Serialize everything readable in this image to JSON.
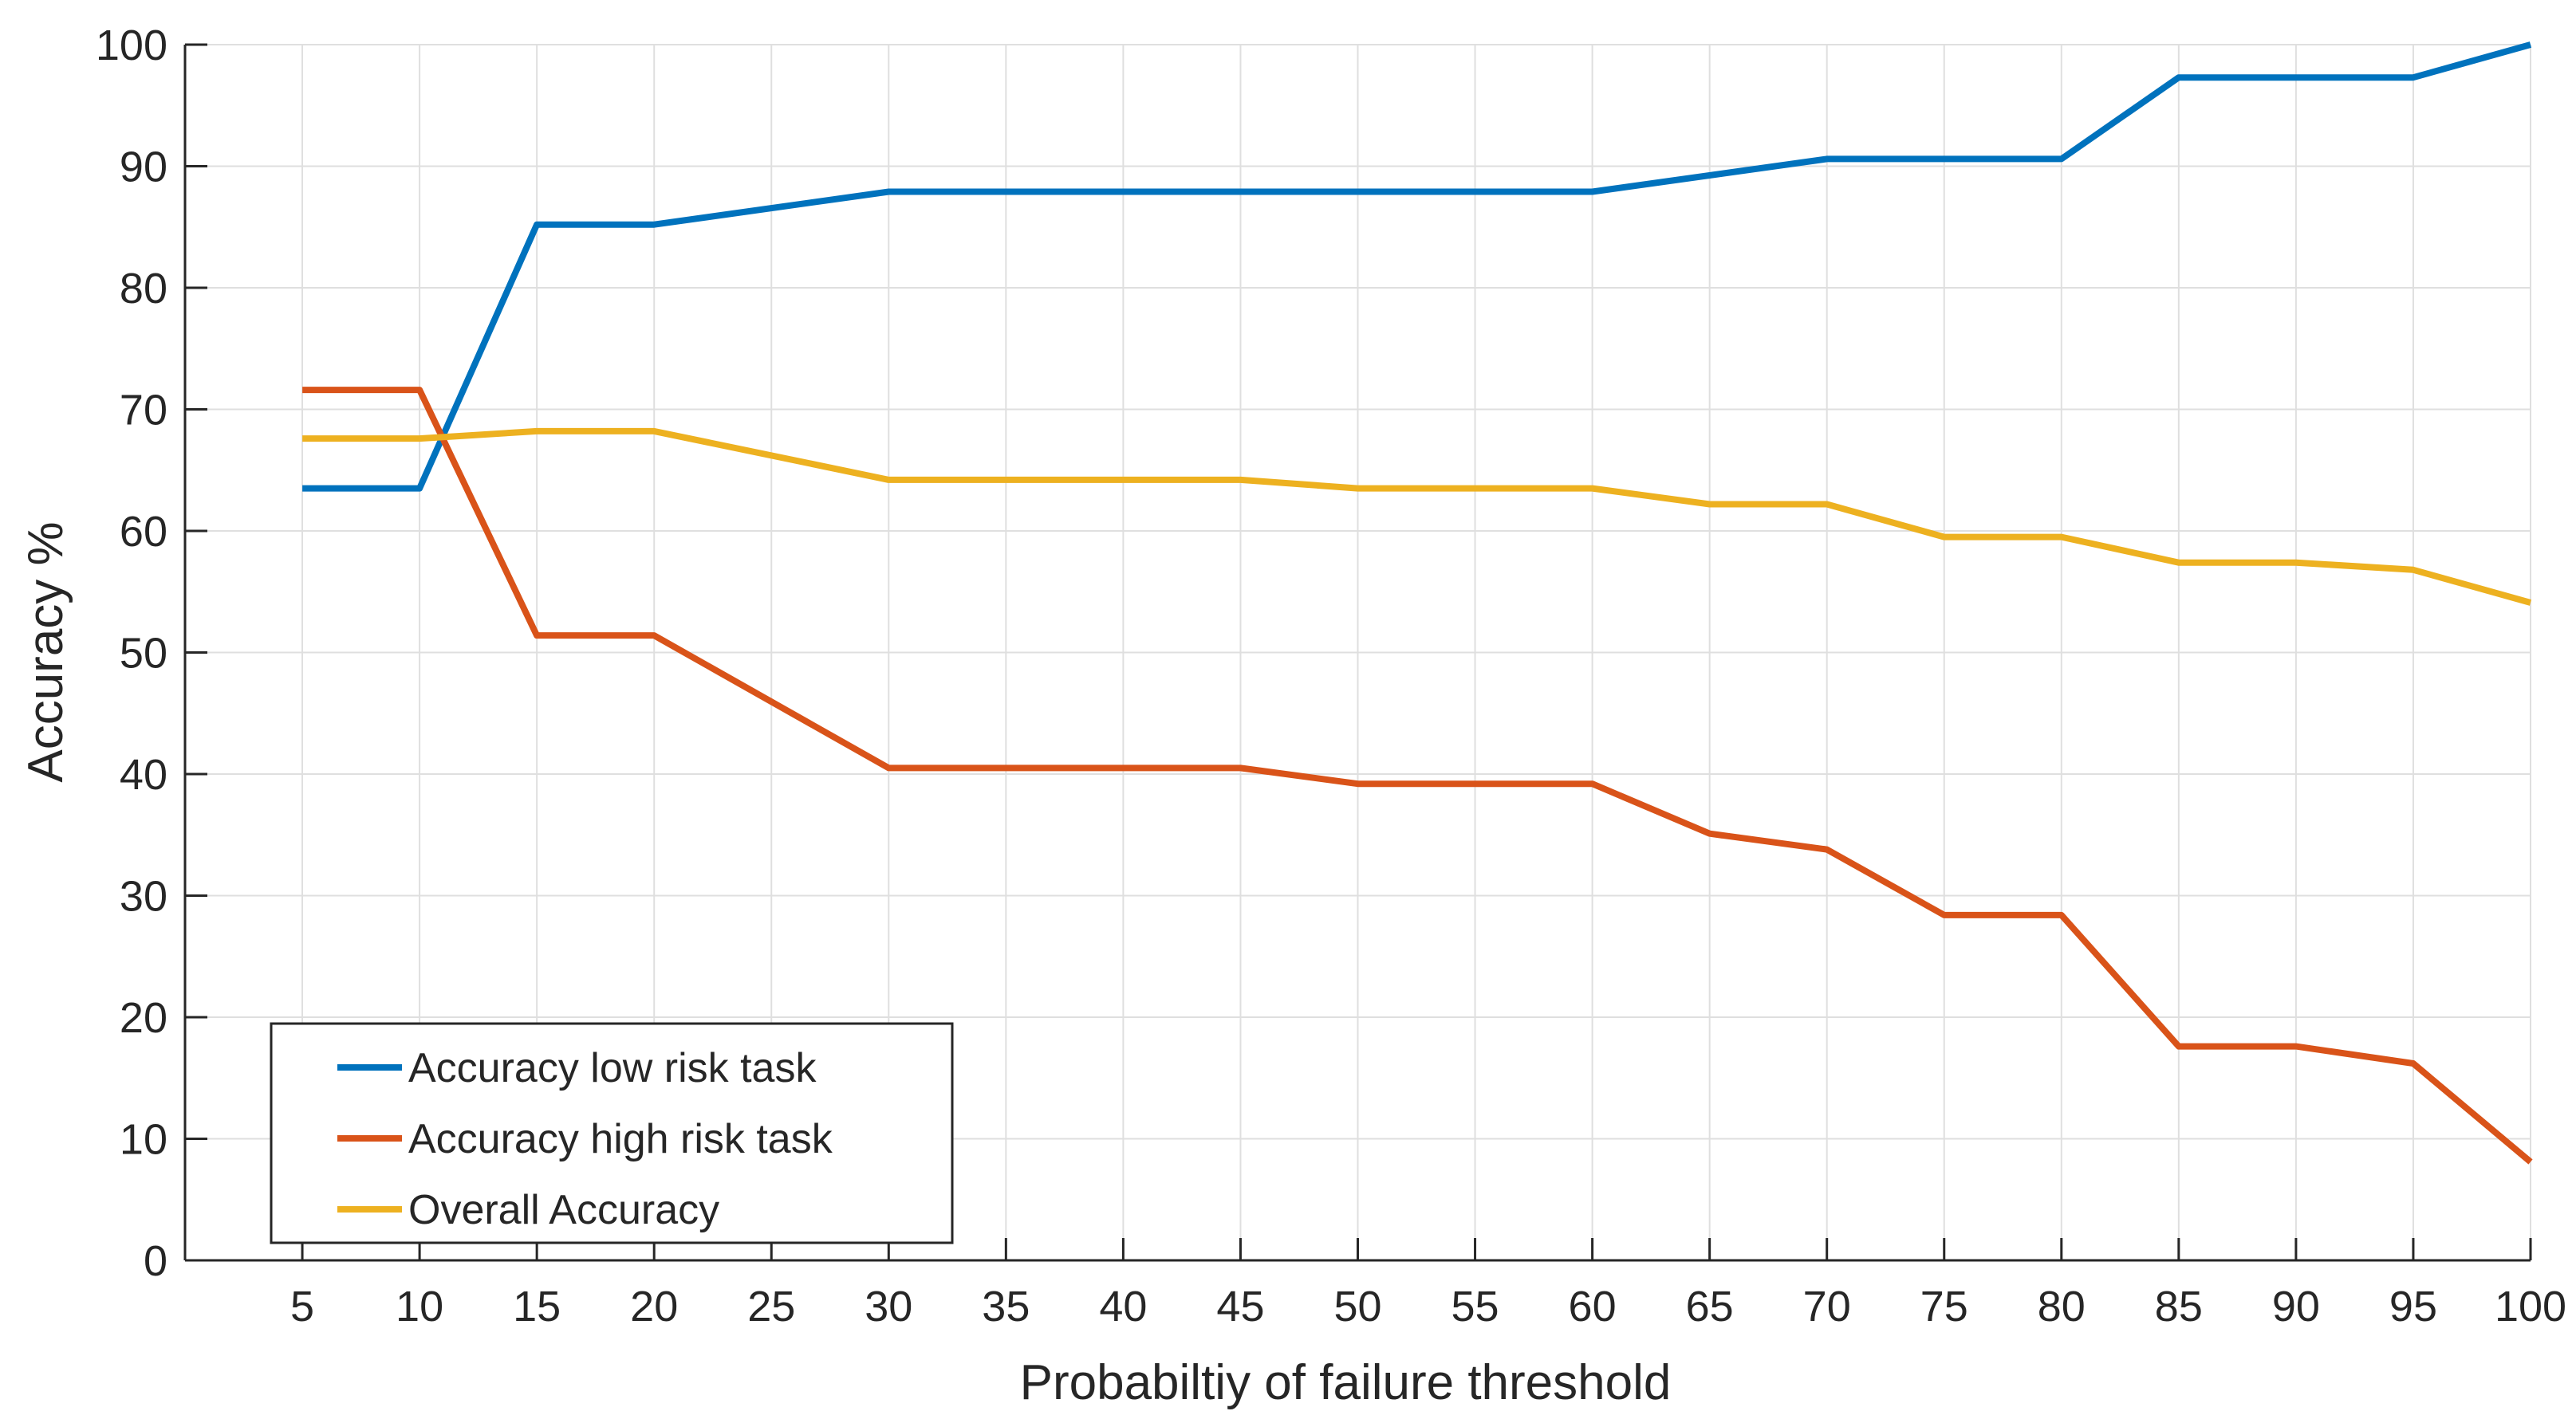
{
  "chart_data": {
    "type": "line",
    "title": "",
    "xlabel": "Probabiltiy of failure threshold",
    "ylabel": "Accuracy %",
    "x": [
      5,
      10,
      15,
      20,
      25,
      30,
      35,
      40,
      45,
      50,
      55,
      60,
      65,
      70,
      75,
      80,
      85,
      90,
      95,
      100
    ],
    "xlim": [
      0,
      100
    ],
    "ylim": [
      0,
      100
    ],
    "xticks": [
      5,
      10,
      15,
      20,
      25,
      30,
      35,
      40,
      45,
      50,
      55,
      60,
      65,
      70,
      75,
      80,
      85,
      90,
      95,
      100
    ],
    "yticks": [
      0,
      10,
      20,
      30,
      40,
      50,
      60,
      70,
      80,
      90,
      100
    ],
    "grid": true,
    "legend_position": "bottom-left",
    "series": [
      {
        "name": "Accuracy low risk task",
        "color": "#0072BD",
        "x": [
          5,
          10,
          15,
          20,
          30,
          60,
          70,
          80,
          85,
          95,
          100
        ],
        "values": [
          63.5,
          63.5,
          85.2,
          85.2,
          87.9,
          87.9,
          90.6,
          90.6,
          97.3,
          97.3,
          100
        ]
      },
      {
        "name": "Accuracy high risk task",
        "color": "#D95319",
        "x": [
          5,
          10,
          15,
          20,
          30,
          45,
          50,
          60,
          65,
          70,
          75,
          80,
          85,
          90,
          95,
          100
        ],
        "values": [
          71.6,
          71.6,
          51.4,
          51.4,
          40.5,
          40.5,
          39.2,
          39.2,
          35.1,
          33.8,
          28.4,
          28.4,
          17.6,
          17.6,
          16.2,
          8.1
        ]
      },
      {
        "name": "Overall Accuracy",
        "color": "#EDB120",
        "x": [
          5,
          10,
          15,
          20,
          30,
          45,
          50,
          60,
          65,
          70,
          75,
          80,
          85,
          90,
          95,
          100
        ],
        "values": [
          67.6,
          67.6,
          68.2,
          68.2,
          64.2,
          64.2,
          63.5,
          63.5,
          62.2,
          62.2,
          59.5,
          59.5,
          57.4,
          57.4,
          56.8,
          54.1
        ]
      }
    ]
  }
}
